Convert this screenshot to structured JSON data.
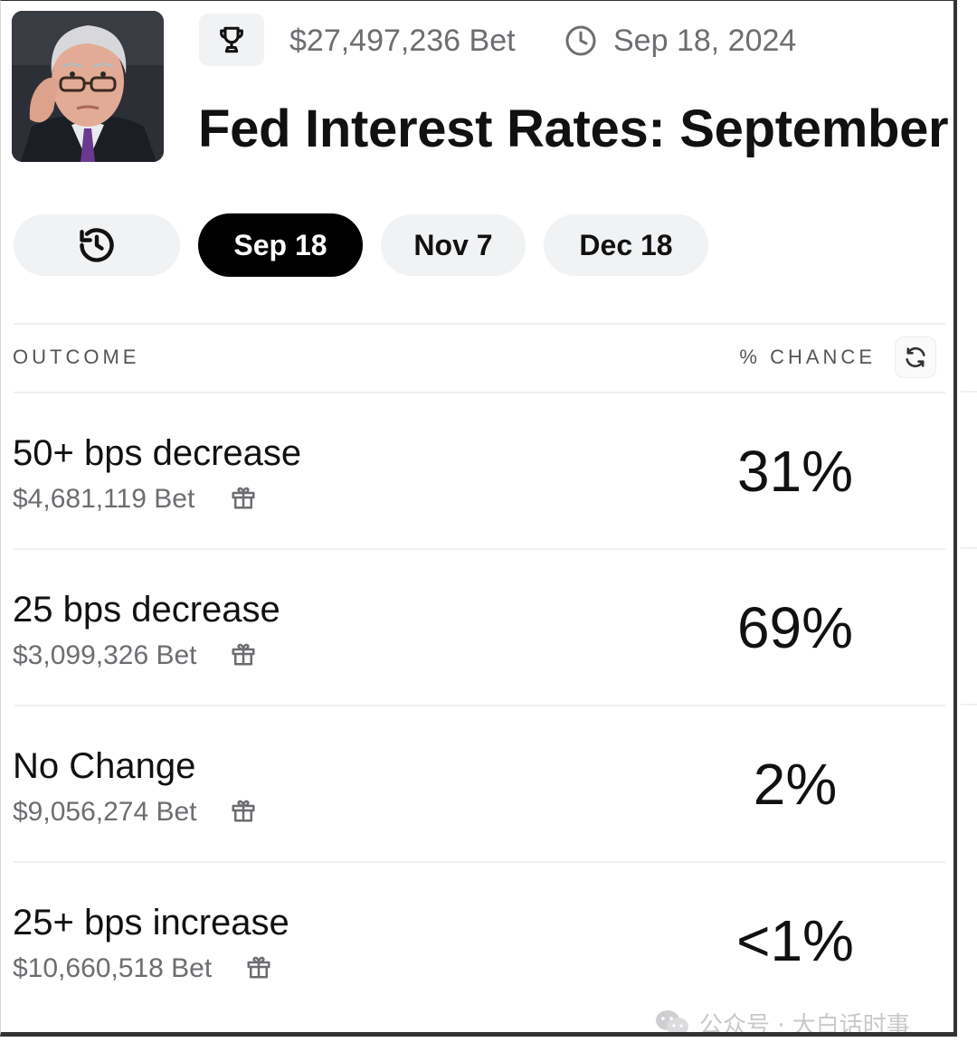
{
  "header": {
    "volume": "$27,497,236 Bet",
    "date": "Sep 18, 2024",
    "title": "Fed Interest Rates: September"
  },
  "tabs": [
    {
      "label": "",
      "icon": "history-icon"
    },
    {
      "label": "Sep 18",
      "active": true
    },
    {
      "label": "Nov 7"
    },
    {
      "label": "Dec 18"
    }
  ],
  "table": {
    "col_outcome": "OUTCOME",
    "col_chance": "% CHANCE",
    "rows": [
      {
        "name": "50+ bps decrease",
        "bet": "$4,681,119 Bet",
        "chance": "31%"
      },
      {
        "name": "25 bps decrease",
        "bet": "$3,099,326 Bet",
        "chance": "69%"
      },
      {
        "name": "No Change",
        "bet": "$9,056,274 Bet",
        "chance": "2%"
      },
      {
        "name": "25+ bps increase",
        "bet": "$10,660,518 Bet",
        "chance": "<1%"
      }
    ]
  },
  "watermark": {
    "text": "公众号 · 大白话时事"
  },
  "colors": {
    "active_tab_bg": "#000000",
    "tab_bg": "#f1f2f4",
    "muted_text": "#6d6d72"
  }
}
